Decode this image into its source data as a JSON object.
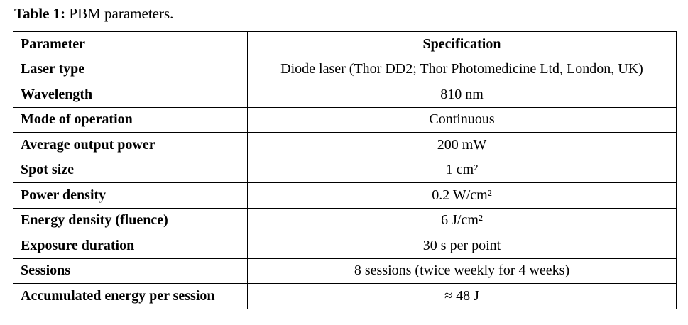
{
  "caption": {
    "label": "Table 1:",
    "text": "PBM parameters."
  },
  "table": {
    "headers": [
      "Parameter",
      "Specification"
    ],
    "rows": [
      [
        "Laser type",
        "Diode laser (Thor DD2; Thor Photomedicine Ltd, London, UK)"
      ],
      [
        "Wavelength",
        "810 nm"
      ],
      [
        "Mode of operation",
        "Continuous"
      ],
      [
        "Average output power",
        "200 mW"
      ],
      [
        "Spot size",
        "1 cm²"
      ],
      [
        "Power density",
        "0.2 W/cm²"
      ],
      [
        "Energy density (fluence)",
        "6 J/cm²"
      ],
      [
        "Exposure duration",
        "30 s per point"
      ],
      [
        "Sessions",
        "8 sessions (twice weekly for 4 weeks)"
      ],
      [
        "Accumulated energy per session",
        "≈ 48 J"
      ]
    ]
  }
}
